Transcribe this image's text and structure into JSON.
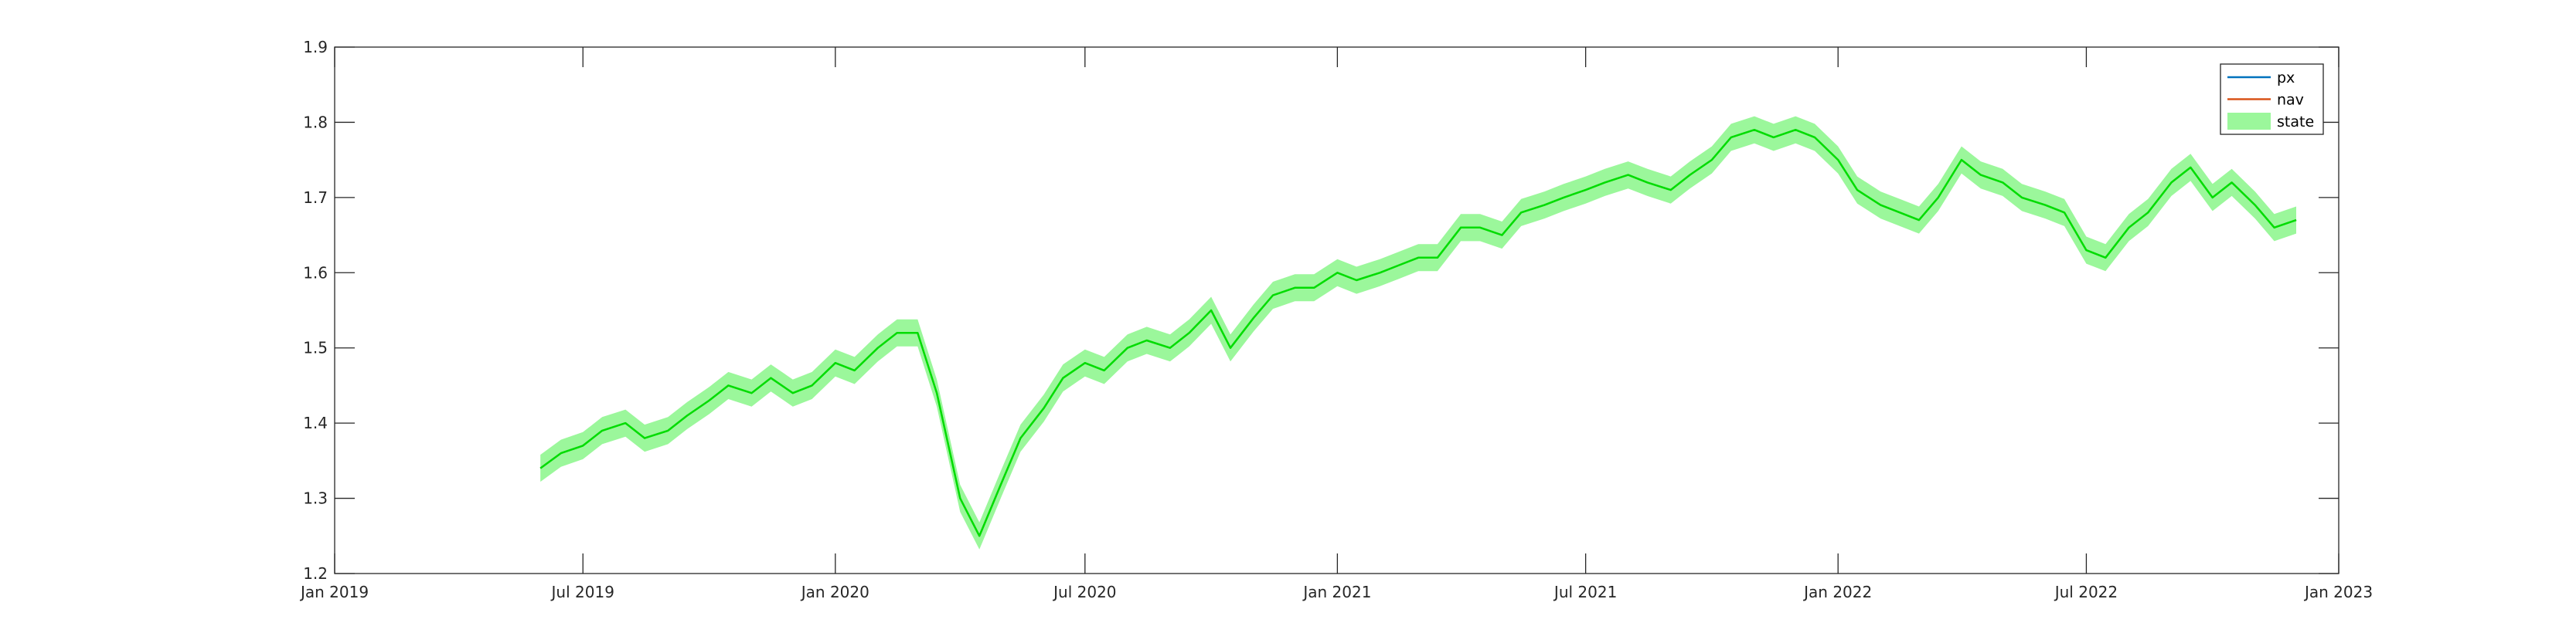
{
  "chart_data": {
    "type": "line",
    "title": "",
    "xlabel": "",
    "ylabel": "",
    "xlim": [
      "2019-01-01",
      "2023-01-01"
    ],
    "ylim": [
      1.2,
      1.9
    ],
    "x_ticks": [
      "2019-01-01",
      "2019-07-01",
      "2020-01-01",
      "2020-07-01",
      "2021-01-01",
      "2021-07-01",
      "2022-01-01",
      "2022-07-01",
      "2023-01-01"
    ],
    "x_tick_labels": [
      "Jan 2019",
      "Jul 2019",
      "Jan 2020",
      "Jul 2020",
      "Jan 2021",
      "Jul 2021",
      "Jan 2022",
      "Jul 2022",
      "Jan 2023"
    ],
    "y_ticks": [
      1.2,
      1.3,
      1.4,
      1.5,
      1.6,
      1.7,
      1.8,
      1.9
    ],
    "y_tick_labels": [
      "1.2",
      "1.3",
      "1.4",
      "1.5",
      "1.6",
      "1.7",
      "1.8",
      "1.9"
    ],
    "grid": false,
    "legend_position": "top-right",
    "legend": [
      "px",
      "nav",
      "state"
    ],
    "band_half_width": 0.018,
    "series": [
      {
        "name": "px",
        "color": "#0072BD",
        "x": [
          "2019-05-31",
          "2019-06-15",
          "2019-07-01",
          "2019-07-15",
          "2019-08-01",
          "2019-08-15",
          "2019-09-01",
          "2019-09-15",
          "2019-10-01",
          "2019-10-15",
          "2019-11-01",
          "2019-11-15",
          "2019-12-01",
          "2019-12-15",
          "2020-01-01",
          "2020-01-15",
          "2020-02-01",
          "2020-02-15",
          "2020-03-01",
          "2020-03-15",
          "2020-04-01",
          "2020-04-15",
          "2020-05-01",
          "2020-05-15",
          "2020-06-01",
          "2020-06-15",
          "2020-07-01",
          "2020-07-15",
          "2020-08-01",
          "2020-08-15",
          "2020-09-01",
          "2020-09-15",
          "2020-10-01",
          "2020-10-15",
          "2020-11-01",
          "2020-11-15",
          "2020-12-01",
          "2020-12-15",
          "2021-01-01",
          "2021-01-15",
          "2021-02-01",
          "2021-02-15",
          "2021-03-01",
          "2021-03-15",
          "2021-04-01",
          "2021-04-15",
          "2021-05-01",
          "2021-05-15",
          "2021-06-01",
          "2021-06-15",
          "2021-07-01",
          "2021-07-15",
          "2021-08-01",
          "2021-08-15",
          "2021-09-01",
          "2021-09-15",
          "2021-10-01",
          "2021-10-15",
          "2021-11-01",
          "2021-11-15",
          "2021-12-01",
          "2021-12-15",
          "2022-01-01",
          "2022-01-15",
          "2022-02-01",
          "2022-02-15",
          "2022-03-01",
          "2022-03-15",
          "2022-04-01",
          "2022-04-15",
          "2022-05-01",
          "2022-05-15",
          "2022-06-01",
          "2022-06-15",
          "2022-07-01",
          "2022-07-15",
          "2022-08-01",
          "2022-08-15",
          "2022-09-01",
          "2022-09-15",
          "2022-10-01",
          "2022-10-15",
          "2022-11-01",
          "2022-11-15",
          "2022-12-01"
        ],
        "y": [
          1.34,
          1.36,
          1.37,
          1.39,
          1.4,
          1.38,
          1.39,
          1.41,
          1.43,
          1.45,
          1.44,
          1.46,
          1.44,
          1.45,
          1.48,
          1.47,
          1.5,
          1.52,
          1.52,
          1.44,
          1.3,
          1.25,
          1.32,
          1.38,
          1.42,
          1.46,
          1.48,
          1.47,
          1.5,
          1.51,
          1.5,
          1.52,
          1.55,
          1.5,
          1.54,
          1.57,
          1.58,
          1.58,
          1.6,
          1.59,
          1.6,
          1.61,
          1.62,
          1.62,
          1.66,
          1.66,
          1.65,
          1.68,
          1.69,
          1.7,
          1.71,
          1.72,
          1.73,
          1.72,
          1.71,
          1.73,
          1.75,
          1.78,
          1.79,
          1.78,
          1.79,
          1.78,
          1.75,
          1.71,
          1.69,
          1.68,
          1.67,
          1.7,
          1.75,
          1.73,
          1.72,
          1.7,
          1.69,
          1.68,
          1.63,
          1.62,
          1.66,
          1.68,
          1.72,
          1.74,
          1.7,
          1.72,
          1.69,
          1.66,
          1.67
        ]
      },
      {
        "name": "nav",
        "color": "#D95319",
        "x": [
          "2019-05-31",
          "2019-06-15",
          "2019-07-01",
          "2019-07-15",
          "2019-08-01",
          "2019-08-15",
          "2019-09-01",
          "2019-09-15",
          "2019-10-01",
          "2019-10-15",
          "2019-11-01",
          "2019-11-15",
          "2019-12-01",
          "2019-12-15",
          "2020-01-01",
          "2020-01-15",
          "2020-02-01",
          "2020-02-15",
          "2020-03-01",
          "2020-03-15",
          "2020-04-01",
          "2020-04-15",
          "2020-05-01",
          "2020-05-15",
          "2020-06-01",
          "2020-06-15",
          "2020-07-01",
          "2020-07-15",
          "2020-08-01",
          "2020-08-15",
          "2020-09-01",
          "2020-09-15",
          "2020-10-01",
          "2020-10-15",
          "2020-11-01",
          "2020-11-15",
          "2020-12-01",
          "2020-12-15",
          "2021-01-01",
          "2021-01-15",
          "2021-02-01",
          "2021-02-15",
          "2021-03-01",
          "2021-03-15",
          "2021-04-01",
          "2021-04-15",
          "2021-05-01",
          "2021-05-15",
          "2021-06-01",
          "2021-06-15",
          "2021-07-01",
          "2021-07-15",
          "2021-08-01",
          "2021-08-15",
          "2021-09-01",
          "2021-09-15",
          "2021-10-01",
          "2021-10-15",
          "2021-11-01",
          "2021-11-15",
          "2021-12-01",
          "2021-12-15",
          "2022-01-01",
          "2022-01-15",
          "2022-02-01",
          "2022-02-15",
          "2022-03-01",
          "2022-03-15",
          "2022-04-01",
          "2022-04-15",
          "2022-05-01",
          "2022-05-15",
          "2022-06-01",
          "2022-06-15",
          "2022-07-01",
          "2022-07-15",
          "2022-08-01",
          "2022-08-15",
          "2022-09-01",
          "2022-09-15",
          "2022-10-01",
          "2022-10-15",
          "2022-11-01",
          "2022-11-15",
          "2022-12-01"
        ],
        "y": [
          1.34,
          1.36,
          1.37,
          1.39,
          1.4,
          1.38,
          1.39,
          1.41,
          1.43,
          1.45,
          1.44,
          1.46,
          1.44,
          1.45,
          1.48,
          1.47,
          1.5,
          1.52,
          1.52,
          1.44,
          1.3,
          1.25,
          1.32,
          1.38,
          1.42,
          1.46,
          1.48,
          1.47,
          1.5,
          1.51,
          1.5,
          1.52,
          1.55,
          1.5,
          1.54,
          1.57,
          1.58,
          1.58,
          1.6,
          1.59,
          1.6,
          1.61,
          1.62,
          1.62,
          1.66,
          1.66,
          1.65,
          1.68,
          1.69,
          1.7,
          1.71,
          1.72,
          1.73,
          1.72,
          1.71,
          1.73,
          1.75,
          1.78,
          1.79,
          1.78,
          1.79,
          1.78,
          1.75,
          1.71,
          1.69,
          1.68,
          1.67,
          1.7,
          1.75,
          1.73,
          1.72,
          1.7,
          1.69,
          1.68,
          1.63,
          1.62,
          1.66,
          1.68,
          1.72,
          1.74,
          1.7,
          1.72,
          1.69,
          1.66,
          1.67
        ]
      },
      {
        "name": "state",
        "color": "#00DD00",
        "band_color": "#9BF79B",
        "x": [
          "2019-05-31",
          "2019-06-15",
          "2019-07-01",
          "2019-07-15",
          "2019-08-01",
          "2019-08-15",
          "2019-09-01",
          "2019-09-15",
          "2019-10-01",
          "2019-10-15",
          "2019-11-01",
          "2019-11-15",
          "2019-12-01",
          "2019-12-15",
          "2020-01-01",
          "2020-01-15",
          "2020-02-01",
          "2020-02-15",
          "2020-03-01",
          "2020-03-15",
          "2020-04-01",
          "2020-04-15",
          "2020-05-01",
          "2020-05-15",
          "2020-06-01",
          "2020-06-15",
          "2020-07-01",
          "2020-07-15",
          "2020-08-01",
          "2020-08-15",
          "2020-09-01",
          "2020-09-15",
          "2020-10-01",
          "2020-10-15",
          "2020-11-01",
          "2020-11-15",
          "2020-12-01",
          "2020-12-15",
          "2021-01-01",
          "2021-01-15",
          "2021-02-01",
          "2021-02-15",
          "2021-03-01",
          "2021-03-15",
          "2021-04-01",
          "2021-04-15",
          "2021-05-01",
          "2021-05-15",
          "2021-06-01",
          "2021-06-15",
          "2021-07-01",
          "2021-07-15",
          "2021-08-01",
          "2021-08-15",
          "2021-09-01",
          "2021-09-15",
          "2021-10-01",
          "2021-10-15",
          "2021-11-01",
          "2021-11-15",
          "2021-12-01",
          "2021-12-15",
          "2022-01-01",
          "2022-01-15",
          "2022-02-01",
          "2022-02-15",
          "2022-03-01",
          "2022-03-15",
          "2022-04-01",
          "2022-04-15",
          "2022-05-01",
          "2022-05-15",
          "2022-06-01",
          "2022-06-15",
          "2022-07-01",
          "2022-07-15",
          "2022-08-01",
          "2022-08-15",
          "2022-09-01",
          "2022-09-15",
          "2022-10-01",
          "2022-10-15",
          "2022-11-01",
          "2022-11-15",
          "2022-12-01"
        ],
        "y": [
          1.34,
          1.36,
          1.37,
          1.39,
          1.4,
          1.38,
          1.39,
          1.41,
          1.43,
          1.45,
          1.44,
          1.46,
          1.44,
          1.45,
          1.48,
          1.47,
          1.5,
          1.52,
          1.52,
          1.44,
          1.3,
          1.25,
          1.32,
          1.38,
          1.42,
          1.46,
          1.48,
          1.47,
          1.5,
          1.51,
          1.5,
          1.52,
          1.55,
          1.5,
          1.54,
          1.57,
          1.58,
          1.58,
          1.6,
          1.59,
          1.6,
          1.61,
          1.62,
          1.62,
          1.66,
          1.66,
          1.65,
          1.68,
          1.69,
          1.7,
          1.71,
          1.72,
          1.73,
          1.72,
          1.71,
          1.73,
          1.75,
          1.78,
          1.79,
          1.78,
          1.79,
          1.78,
          1.75,
          1.71,
          1.69,
          1.68,
          1.67,
          1.7,
          1.75,
          1.73,
          1.72,
          1.7,
          1.69,
          1.68,
          1.63,
          1.62,
          1.66,
          1.68,
          1.72,
          1.74,
          1.7,
          1.72,
          1.69,
          1.66,
          1.67
        ]
      }
    ]
  }
}
